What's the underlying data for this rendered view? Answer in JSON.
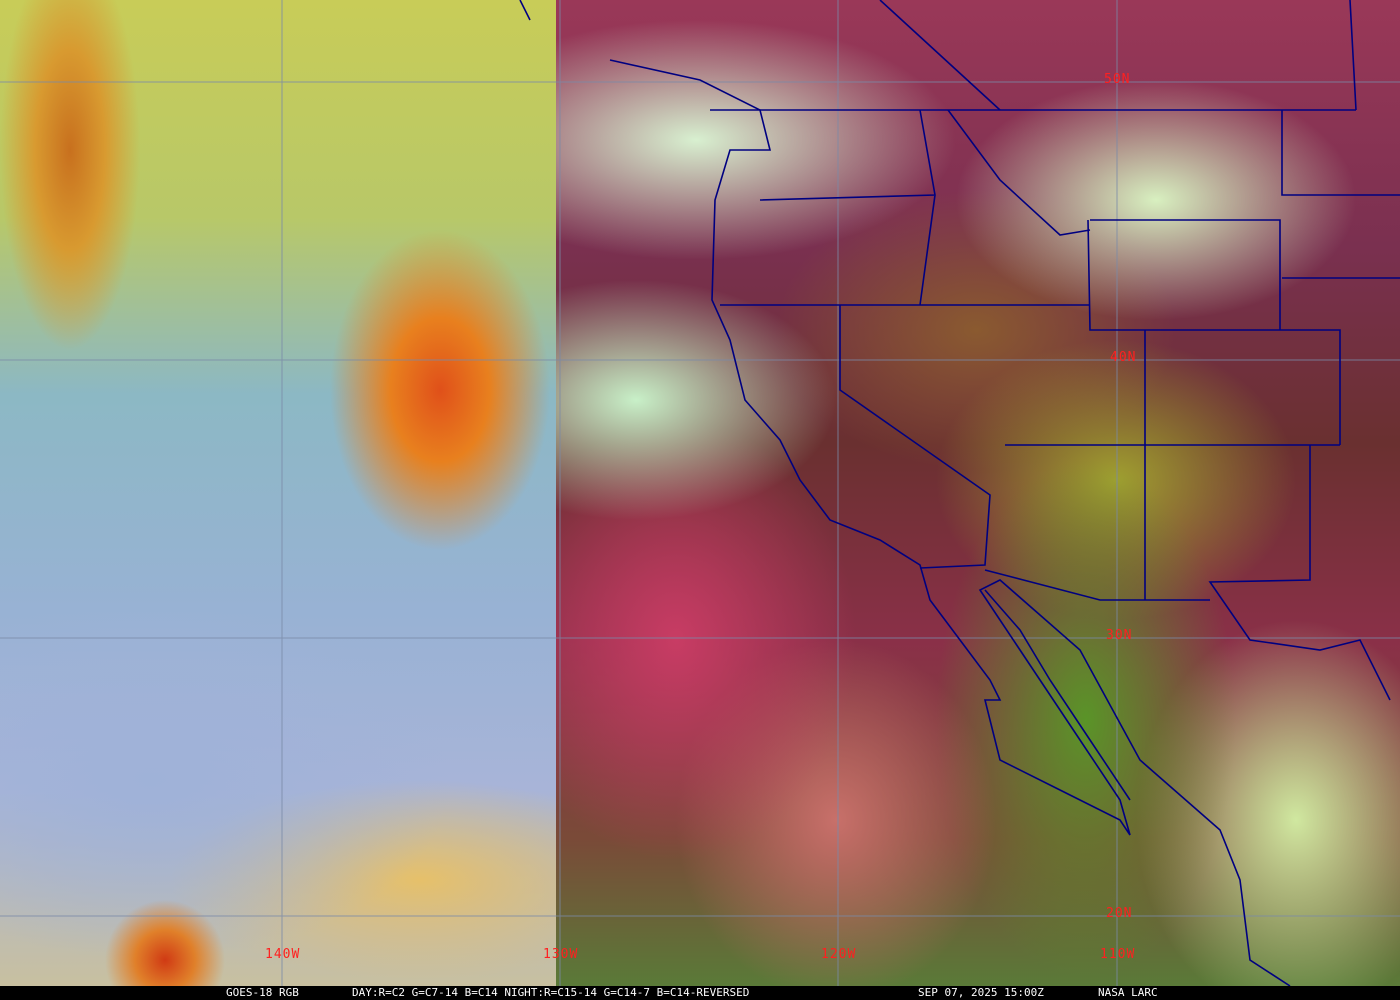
{
  "map": {
    "satellite": "GOES-18",
    "colors": {
      "grid": "#7a8aa8",
      "borders": "#000080",
      "labels": "#ff2020"
    },
    "lat_labels": [
      "50N",
      "40N",
      "30N",
      "20N"
    ],
    "lon_labels": [
      "140W",
      "130W",
      "120W",
      "110W"
    ]
  },
  "caption": {
    "product": "GOES-18 RGB",
    "recipe": "DAY:R=C2 G=C7-14 B=C14 NIGHT:R=C15-14 G=C14-7 B=C14-REVERSED",
    "datetime": "SEP 07, 2025 15:00Z",
    "source": "NASA LARC"
  }
}
